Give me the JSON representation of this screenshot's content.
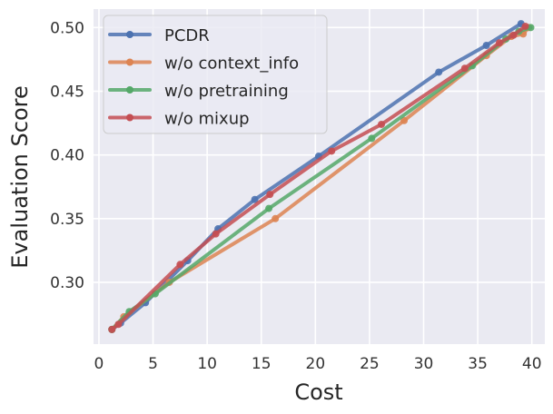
{
  "chart_data": {
    "type": "line",
    "title": "",
    "xlabel": "Cost",
    "ylabel": "Evaluation Score",
    "xlim": [
      -0.5,
      41.2
    ],
    "ylim": [
      0.2515,
      0.5145
    ],
    "xticks": [
      0,
      5,
      10,
      15,
      20,
      25,
      30,
      35,
      40
    ],
    "xtick_labels": [
      "0",
      "5",
      "10",
      "15",
      "20",
      "25",
      "30",
      "35",
      "40"
    ],
    "yticks": [
      0.3,
      0.35,
      0.4,
      0.45,
      0.5
    ],
    "ytick_labels": [
      "0.30",
      "0.35",
      "0.40",
      "0.45",
      "0.50"
    ],
    "grid": true,
    "legend_position": "upper-left",
    "series": [
      {
        "name": "PCDR",
        "color": "#4c72b0",
        "x": [
          1.2,
          2.0,
          4.3,
          8.2,
          11.0,
          14.4,
          20.3,
          31.4,
          35.8,
          39.0
        ],
        "y": [
          0.263,
          0.268,
          0.284,
          0.317,
          0.342,
          0.365,
          0.399,
          0.465,
          0.486,
          0.503
        ]
      },
      {
        "name": "w/o context_info",
        "color": "#dd8452",
        "x": [
          1.2,
          2.3,
          6.5,
          16.3,
          28.2,
          35.8,
          38.1,
          39.2,
          39.7
        ],
        "y": [
          0.263,
          0.273,
          0.3,
          0.35,
          0.427,
          0.478,
          0.493,
          0.495,
          0.5
        ]
      },
      {
        "name": "w/o pretraining",
        "color": "#55a868",
        "x": [
          1.2,
          2.8,
          5.2,
          15.7,
          25.2,
          34.5,
          37.6,
          38.8,
          39.9
        ],
        "y": [
          0.263,
          0.277,
          0.291,
          0.358,
          0.413,
          0.47,
          0.491,
          0.497,
          0.5
        ]
      },
      {
        "name": "w/o mixup",
        "color": "#c44e52",
        "x": [
          1.2,
          1.8,
          7.5,
          10.8,
          15.8,
          21.5,
          26.1,
          33.8,
          37.0,
          38.3,
          39.4
        ],
        "y": [
          0.263,
          0.267,
          0.314,
          0.338,
          0.369,
          0.403,
          0.424,
          0.468,
          0.488,
          0.494,
          0.501
        ]
      }
    ]
  }
}
